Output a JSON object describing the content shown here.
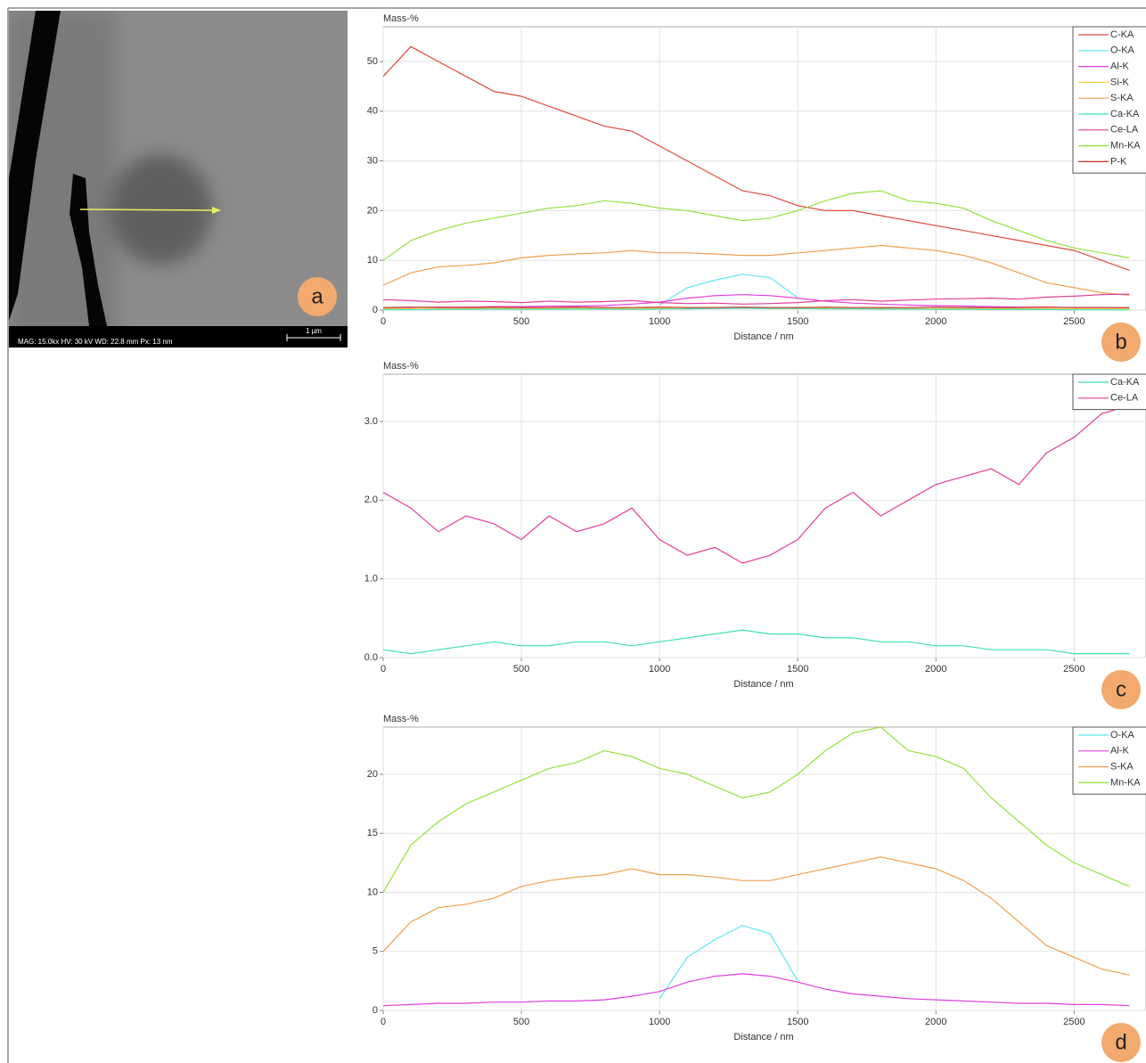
{
  "image_panel": {
    "label": "a",
    "info": "MAG: 15.0kx   HV: 30 kV   WD: 22.8 mm   Px: 13 nm",
    "scale_bar": "1 µm"
  },
  "chart_data": [
    {
      "type": "line",
      "panel_label": "b",
      "y_label": "Mass-%",
      "x_label": "Distance / nm",
      "grid": true,
      "legend": "top-right",
      "x": [
        0,
        100,
        200,
        300,
        400,
        500,
        600,
        700,
        800,
        900,
        1000,
        1100,
        1200,
        1300,
        1400,
        1500,
        1600,
        1700,
        1800,
        1900,
        2000,
        2100,
        2200,
        2300,
        2400,
        2500,
        2600,
        2700
      ],
      "xlim": [
        0,
        2760
      ],
      "xticks": [
        0,
        500,
        1000,
        1500,
        2000,
        2500
      ],
      "ylim": [
        0,
        57
      ],
      "yticks": [
        0,
        10,
        20,
        30,
        40,
        50
      ],
      "series": [
        {
          "name": "C-KA",
          "color": "#e04a3f",
          "values": [
            47,
            53,
            50,
            47,
            44,
            43,
            41,
            39,
            37,
            36,
            33,
            30,
            27,
            24,
            23,
            21,
            20,
            20,
            19,
            18,
            17,
            16,
            15,
            14,
            13,
            12,
            10,
            8
          ]
        },
        {
          "name": "O-KA",
          "color": "#5ee6f0",
          "values": [
            null,
            null,
            null,
            null,
            null,
            null,
            null,
            null,
            null,
            null,
            1,
            4.5,
            6,
            7.2,
            6.5,
            2.5,
            null,
            null,
            null,
            null,
            null,
            null,
            null,
            null,
            null,
            null,
            null,
            null
          ]
        },
        {
          "name": "Al-K",
          "color": "#e040e0",
          "values": [
            0.4,
            0.5,
            0.6,
            0.6,
            0.7,
            0.7,
            0.8,
            0.8,
            0.9,
            1.2,
            1.6,
            2.4,
            2.9,
            3.1,
            2.9,
            2.4,
            1.8,
            1.4,
            1.2,
            1.0,
            0.9,
            0.8,
            0.7,
            0.6,
            0.6,
            0.5,
            0.5,
            0.4
          ]
        },
        {
          "name": "Si-K",
          "color": "#f0d040",
          "values": [
            0.3,
            0.3,
            0.4,
            0.3,
            0.4,
            0.3,
            0.4,
            0.4,
            0.3,
            0.4,
            0.4,
            0.5,
            0.5,
            0.5,
            0.4,
            0.4,
            0.4,
            0.3,
            0.4,
            0.3,
            0.3,
            0.4,
            0.3,
            0.3,
            0.3,
            0.3,
            0.3,
            0.3
          ]
        },
        {
          "name": "S-KA",
          "color": "#f0a050",
          "values": [
            5,
            7.5,
            8.7,
            9,
            9.5,
            10.5,
            11,
            11.3,
            11.5,
            12,
            11.5,
            11.5,
            11.3,
            11,
            11,
            11.5,
            12,
            12.5,
            13,
            12.5,
            12,
            11,
            9.5,
            7.5,
            5.5,
            4.5,
            3.5,
            3
          ]
        },
        {
          "name": "Ca-KA",
          "color": "#40e0b0",
          "values": [
            0.1,
            0.05,
            0.1,
            0.15,
            0.2,
            0.15,
            0.15,
            0.2,
            0.2,
            0.15,
            0.2,
            0.25,
            0.3,
            0.35,
            0.3,
            0.3,
            0.25,
            0.25,
            0.2,
            0.2,
            0.15,
            0.15,
            0.1,
            0.1,
            0.1,
            0.05,
            0.05,
            0.05
          ]
        },
        {
          "name": "Ce-LA",
          "color": "#e0409a",
          "values": [
            2.1,
            1.9,
            1.6,
            1.8,
            1.7,
            1.5,
            1.8,
            1.6,
            1.7,
            1.9,
            1.5,
            1.3,
            1.4,
            1.2,
            1.3,
            1.5,
            1.9,
            2.1,
            1.8,
            2.0,
            2.2,
            2.3,
            2.4,
            2.2,
            2.6,
            2.8,
            3.1,
            3.2
          ]
        },
        {
          "name": "Mn-KA",
          "color": "#96e040",
          "values": [
            10,
            14,
            16,
            17.5,
            18.5,
            19.5,
            20.5,
            21,
            22,
            21.5,
            20.5,
            20,
            19,
            18,
            18.5,
            20,
            22,
            23.5,
            24,
            22,
            21.5,
            20.5,
            18,
            16,
            14,
            12.5,
            11.5,
            10.5
          ]
        },
        {
          "name": "P-K",
          "color": "#c83030",
          "values": [
            0.5,
            0.6,
            0.5,
            0.5,
            0.6,
            0.5,
            0.5,
            0.6,
            0.5,
            0.5,
            0.6,
            0.5,
            0.5,
            0.6,
            0.5,
            0.5,
            0.6,
            0.5,
            0.5,
            0.5,
            0.6,
            0.5,
            0.5,
            0.5,
            0.6,
            0.5,
            0.5,
            0.5
          ]
        }
      ]
    },
    {
      "type": "line",
      "panel_label": "c",
      "y_label": "Mass-%",
      "x_label": "Distance / nm",
      "grid": true,
      "legend": "top-right",
      "x": [
        0,
        100,
        200,
        300,
        400,
        500,
        600,
        700,
        800,
        900,
        1000,
        1100,
        1200,
        1300,
        1400,
        1500,
        1600,
        1700,
        1800,
        1900,
        2000,
        2100,
        2200,
        2300,
        2400,
        2500,
        2600,
        2700
      ],
      "xlim": [
        0,
        2760
      ],
      "xticks": [
        0,
        500,
        1000,
        1500,
        2000,
        2500
      ],
      "ylim": [
        0,
        3.6
      ],
      "yticks": [
        {
          "value": 0,
          "label": "0.0"
        },
        {
          "value": 1,
          "label": "1.0"
        },
        {
          "value": 2,
          "label": "2.0"
        },
        {
          "value": 3,
          "label": "3.0"
        }
      ],
      "series": [
        {
          "name": "Ca-KA",
          "color": "#40e0b0",
          "values": [
            0.1,
            0.05,
            0.1,
            0.15,
            0.2,
            0.15,
            0.15,
            0.2,
            0.2,
            0.15,
            0.2,
            0.25,
            0.3,
            0.35,
            0.3,
            0.3,
            0.25,
            0.25,
            0.2,
            0.2,
            0.15,
            0.15,
            0.1,
            0.1,
            0.1,
            0.05,
            0.05,
            0.05
          ]
        },
        {
          "name": "Ce-LA",
          "color": "#e0409a",
          "values": [
            2.1,
            1.9,
            1.6,
            1.8,
            1.7,
            1.5,
            1.8,
            1.6,
            1.7,
            1.9,
            1.5,
            1.3,
            1.4,
            1.2,
            1.3,
            1.5,
            1.9,
            2.1,
            1.8,
            2.0,
            2.2,
            2.3,
            2.4,
            2.2,
            2.6,
            2.8,
            3.1,
            3.2
          ]
        }
      ]
    },
    {
      "type": "line",
      "panel_label": "d",
      "y_label": "Mass-%",
      "x_label": "Distance / nm",
      "grid": true,
      "legend": "top-right",
      "x": [
        0,
        100,
        200,
        300,
        400,
        500,
        600,
        700,
        800,
        900,
        1000,
        1100,
        1200,
        1300,
        1400,
        1500,
        1600,
        1700,
        1800,
        1900,
        2000,
        2100,
        2200,
        2300,
        2400,
        2500,
        2600,
        2700
      ],
      "xlim": [
        0,
        2760
      ],
      "xticks": [
        0,
        500,
        1000,
        1500,
        2000,
        2500
      ],
      "ylim": [
        0,
        24
      ],
      "yticks": [
        0,
        5,
        10,
        15,
        20
      ],
      "series": [
        {
          "name": "O-KA",
          "color": "#5ee6f0",
          "values": [
            null,
            null,
            null,
            null,
            null,
            null,
            null,
            null,
            null,
            null,
            1,
            4.5,
            6,
            7.2,
            6.5,
            2.5,
            null,
            null,
            null,
            null,
            null,
            null,
            null,
            null,
            null,
            null,
            null,
            null
          ]
        },
        {
          "name": "Al-K",
          "color": "#e040e0",
          "values": [
            0.4,
            0.5,
            0.6,
            0.6,
            0.7,
            0.7,
            0.8,
            0.8,
            0.9,
            1.2,
            1.6,
            2.4,
            2.9,
            3.1,
            2.9,
            2.4,
            1.8,
            1.4,
            1.2,
            1.0,
            0.9,
            0.8,
            0.7,
            0.6,
            0.6,
            0.5,
            0.5,
            0.4
          ]
        },
        {
          "name": "S-KA",
          "color": "#f0a050",
          "values": [
            5,
            7.5,
            8.7,
            9,
            9.5,
            10.5,
            11,
            11.3,
            11.5,
            12,
            11.5,
            11.5,
            11.3,
            11,
            11,
            11.5,
            12,
            12.5,
            13,
            12.5,
            12,
            11,
            9.5,
            7.5,
            5.5,
            4.5,
            3.5,
            3
          ]
        },
        {
          "name": "Mn-KA",
          "color": "#96e040",
          "values": [
            10,
            14,
            16,
            17.5,
            18.5,
            19.5,
            20.5,
            21,
            22,
            21.5,
            20.5,
            20,
            19,
            18,
            18.5,
            20,
            22,
            23.5,
            24,
            22,
            21.5,
            20.5,
            18,
            16,
            14,
            12.5,
            11.5,
            10.5
          ]
        }
      ]
    }
  ]
}
